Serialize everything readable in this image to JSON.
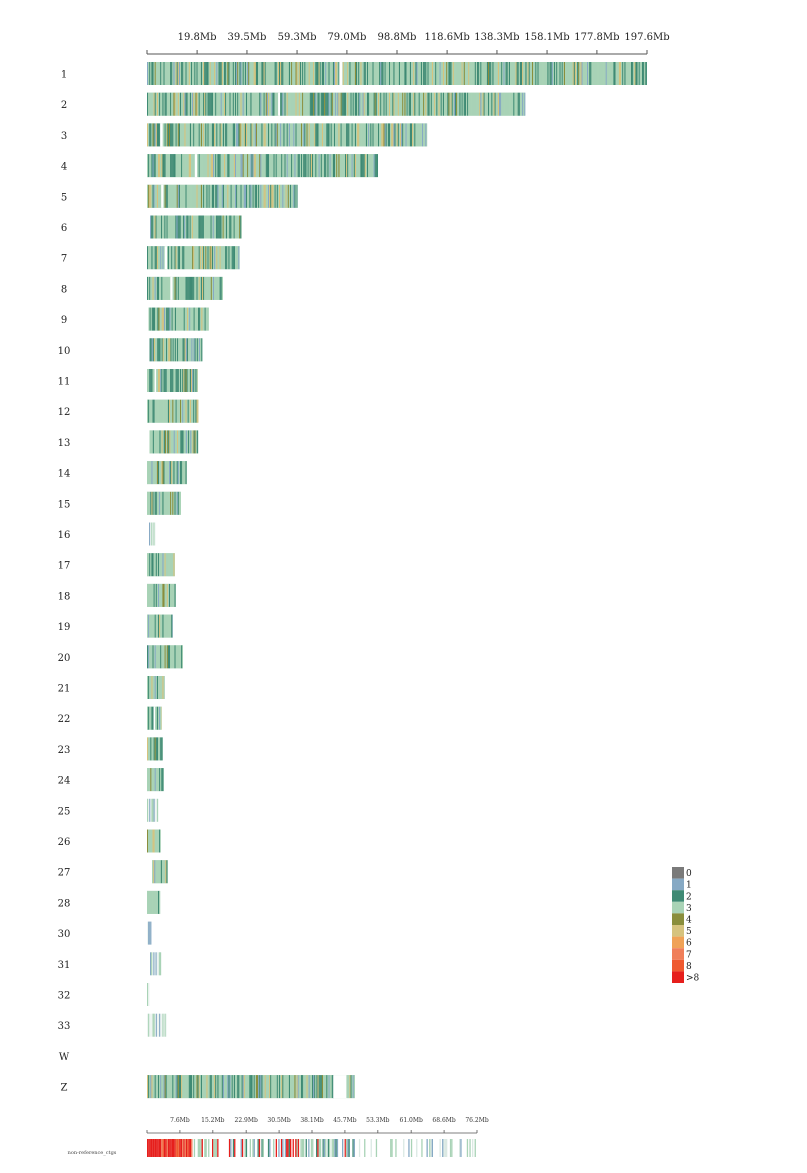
{
  "chart_data": [
    {
      "type": "heatmap",
      "title": "",
      "xlabel": "",
      "ylabel": "",
      "unit": "Mb",
      "x_ticks": [
        "19.8Mb",
        "39.5Mb",
        "59.3Mb",
        "79.0Mb",
        "98.8Mb",
        "118.6Mb",
        "138.3Mb",
        "158.1Mb",
        "177.8Mb",
        "197.6Mb"
      ],
      "x_tick_values": [
        19.8,
        39.5,
        59.3,
        79.0,
        98.8,
        118.6,
        138.3,
        158.1,
        177.8,
        197.6
      ],
      "xlim": [
        0,
        197.6
      ],
      "chromosomes": [
        {
          "name": "1",
          "start": 0.0,
          "length": 197.6,
          "gaps": [
            [
              76.0,
              77.2
            ]
          ]
        },
        {
          "name": "2",
          "start": 0.0,
          "length": 149.5,
          "gaps": [
            [
              51.8,
              52.6
            ]
          ]
        },
        {
          "name": "3",
          "start": 0.0,
          "length": 110.7,
          "gaps": [
            [
              5.2,
              6.2
            ]
          ]
        },
        {
          "name": "4",
          "start": 0.0,
          "length": 91.3,
          "gaps": [
            [
              18.9,
              19.8
            ]
          ]
        },
        {
          "name": "5",
          "start": 0.0,
          "length": 59.5,
          "gaps": [
            [
              5.6,
              6.5
            ]
          ]
        },
        {
          "name": "6",
          "start": 1.2,
          "length": 36.2,
          "gaps": []
        },
        {
          "name": "7",
          "start": 0.0,
          "length": 36.6,
          "gaps": [
            [
              7.0,
              7.9
            ]
          ]
        },
        {
          "name": "8",
          "start": 0.0,
          "length": 30.0,
          "gaps": [
            [
              9.2,
              10.1
            ]
          ]
        },
        {
          "name": "9",
          "start": 0.6,
          "length": 23.8,
          "gaps": []
        },
        {
          "name": "10",
          "start": 1.0,
          "length": 20.9,
          "gaps": []
        },
        {
          "name": "11",
          "start": 0.0,
          "length": 20.1,
          "gaps": [
            [
              3.0,
              3.6
            ]
          ]
        },
        {
          "name": "12",
          "start": 0.0,
          "length": 20.3,
          "gaps": []
        },
        {
          "name": "13",
          "start": 1.0,
          "length": 19.2,
          "gaps": []
        },
        {
          "name": "14",
          "start": 0.0,
          "length": 15.8,
          "gaps": []
        },
        {
          "name": "15",
          "start": 0.0,
          "length": 13.4,
          "gaps": []
        },
        {
          "name": "16",
          "start": 0.8,
          "length": 2.6,
          "gaps": [],
          "sparse": true
        },
        {
          "name": "17",
          "start": 0.0,
          "length": 11.0,
          "gaps": []
        },
        {
          "name": "18",
          "start": 0.0,
          "length": 11.4,
          "gaps": []
        },
        {
          "name": "19",
          "start": 0.0,
          "length": 10.2,
          "gaps": []
        },
        {
          "name": "20",
          "start": 0.0,
          "length": 14.2,
          "gaps": []
        },
        {
          "name": "21",
          "start": 0.0,
          "length": 7.0,
          "gaps": []
        },
        {
          "name": "22",
          "start": 0.0,
          "length": 5.8,
          "gaps": [
            [
              2.6,
              3.2
            ]
          ]
        },
        {
          "name": "23",
          "start": 0.0,
          "length": 6.2,
          "gaps": []
        },
        {
          "name": "24",
          "start": 0.0,
          "length": 6.6,
          "gaps": []
        },
        {
          "name": "25",
          "start": 0.0,
          "length": 4.4,
          "gaps": [],
          "sparse": true
        },
        {
          "name": "26",
          "start": 0.0,
          "length": 5.4,
          "gaps": []
        },
        {
          "name": "27",
          "start": 2.0,
          "length": 6.2,
          "gaps": []
        },
        {
          "name": "28",
          "start": 0.0,
          "length": 5.2,
          "gaps": []
        },
        {
          "name": "30",
          "start": 0.0,
          "length": 1.8,
          "gaps": [],
          "sparse": true
        },
        {
          "name": "31",
          "start": 1.2,
          "length": 4.6,
          "gaps": [],
          "sparse": true
        },
        {
          "name": "32",
          "start": 0.0,
          "length": 1.0,
          "gaps": [],
          "sparse": true
        },
        {
          "name": "33",
          "start": 0.0,
          "length": 7.8,
          "gaps": [],
          "sparse": true
        },
        {
          "name": "W",
          "start": 0.0,
          "length": 0.0,
          "gaps": []
        },
        {
          "name": "Z",
          "start": 0.0,
          "length": 82.2,
          "gaps": [
            [
              73.6,
              78.8
            ]
          ]
        }
      ],
      "legend": {
        "placement": "right",
        "entries": [
          {
            "label": "0",
            "color": "#7a7a7a"
          },
          {
            "label": "1",
            "color": "#86a9c4"
          },
          {
            "label": "2",
            "color": "#3f8a74"
          },
          {
            "label": "3",
            "color": "#a9d3b6"
          },
          {
            "label": "4",
            "color": "#8a8e3c"
          },
          {
            "label": "5",
            "color": "#d6c37e"
          },
          {
            "label": "6",
            "color": "#f0a257"
          },
          {
            "label": "7",
            "color": "#f07f5a"
          },
          {
            "label": "8",
            "color": "#ef5a30"
          },
          {
            "label": ">8",
            "color": "#e61f1c"
          }
        ]
      }
    },
    {
      "type": "heatmap",
      "title": "",
      "row_label": "non-reference_ctgs",
      "unit": "Mb",
      "x_ticks": [
        "7.6Mb",
        "15.2Mb",
        "22.9Mb",
        "30.5Mb",
        "38.1Mb",
        "45.7Mb",
        "53.3Mb",
        "61.0Mb",
        "68.6Mb",
        "76.2Mb"
      ],
      "x_tick_values": [
        7.6,
        15.2,
        22.9,
        30.5,
        38.1,
        45.7,
        53.3,
        61.0,
        68.6,
        76.2
      ],
      "xlim": [
        0,
        76.2
      ],
      "length": 76.2
    }
  ]
}
